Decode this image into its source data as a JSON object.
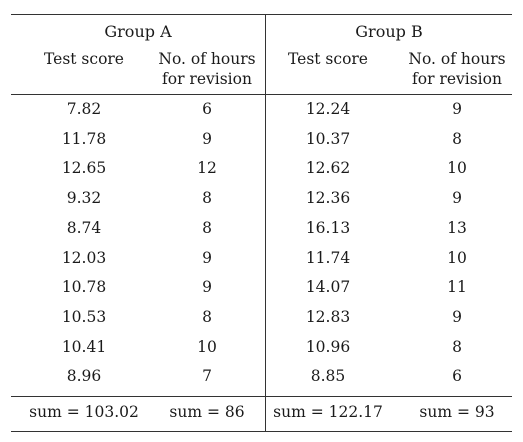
{
  "groups": [
    {
      "title": "Group A",
      "columns": [
        "Test score",
        "No. of hours for revision"
      ],
      "column_lines": [
        [
          "Test score"
        ],
        [
          "No. of hours",
          "for revision"
        ]
      ],
      "rows": [
        [
          "7.82",
          "6"
        ],
        [
          "11.78",
          "9"
        ],
        [
          "12.65",
          "12"
        ],
        [
          "9.32",
          "8"
        ],
        [
          "8.74",
          "8"
        ],
        [
          "12.03",
          "9"
        ],
        [
          "10.78",
          "9"
        ],
        [
          "10.53",
          "8"
        ],
        [
          "10.41",
          "10"
        ],
        [
          "8.96",
          "7"
        ]
      ],
      "sums": [
        "sum = 103.02",
        "sum = 86"
      ]
    },
    {
      "title": "Group B",
      "columns": [
        "Test score",
        "No. of hours for revision"
      ],
      "column_lines": [
        [
          "Test score"
        ],
        [
          "No. of hours",
          "for revision"
        ]
      ],
      "rows": [
        [
          "12.24",
          "9"
        ],
        [
          "10.37",
          "8"
        ],
        [
          "12.62",
          "10"
        ],
        [
          "12.36",
          "9"
        ],
        [
          "16.13",
          "13"
        ],
        [
          "11.74",
          "10"
        ],
        [
          "14.07",
          "11"
        ],
        [
          "12.83",
          "9"
        ],
        [
          "10.96",
          "8"
        ],
        [
          "8.85",
          "6"
        ]
      ],
      "sums": [
        "sum = 122.17",
        "sum = 93"
      ]
    }
  ]
}
